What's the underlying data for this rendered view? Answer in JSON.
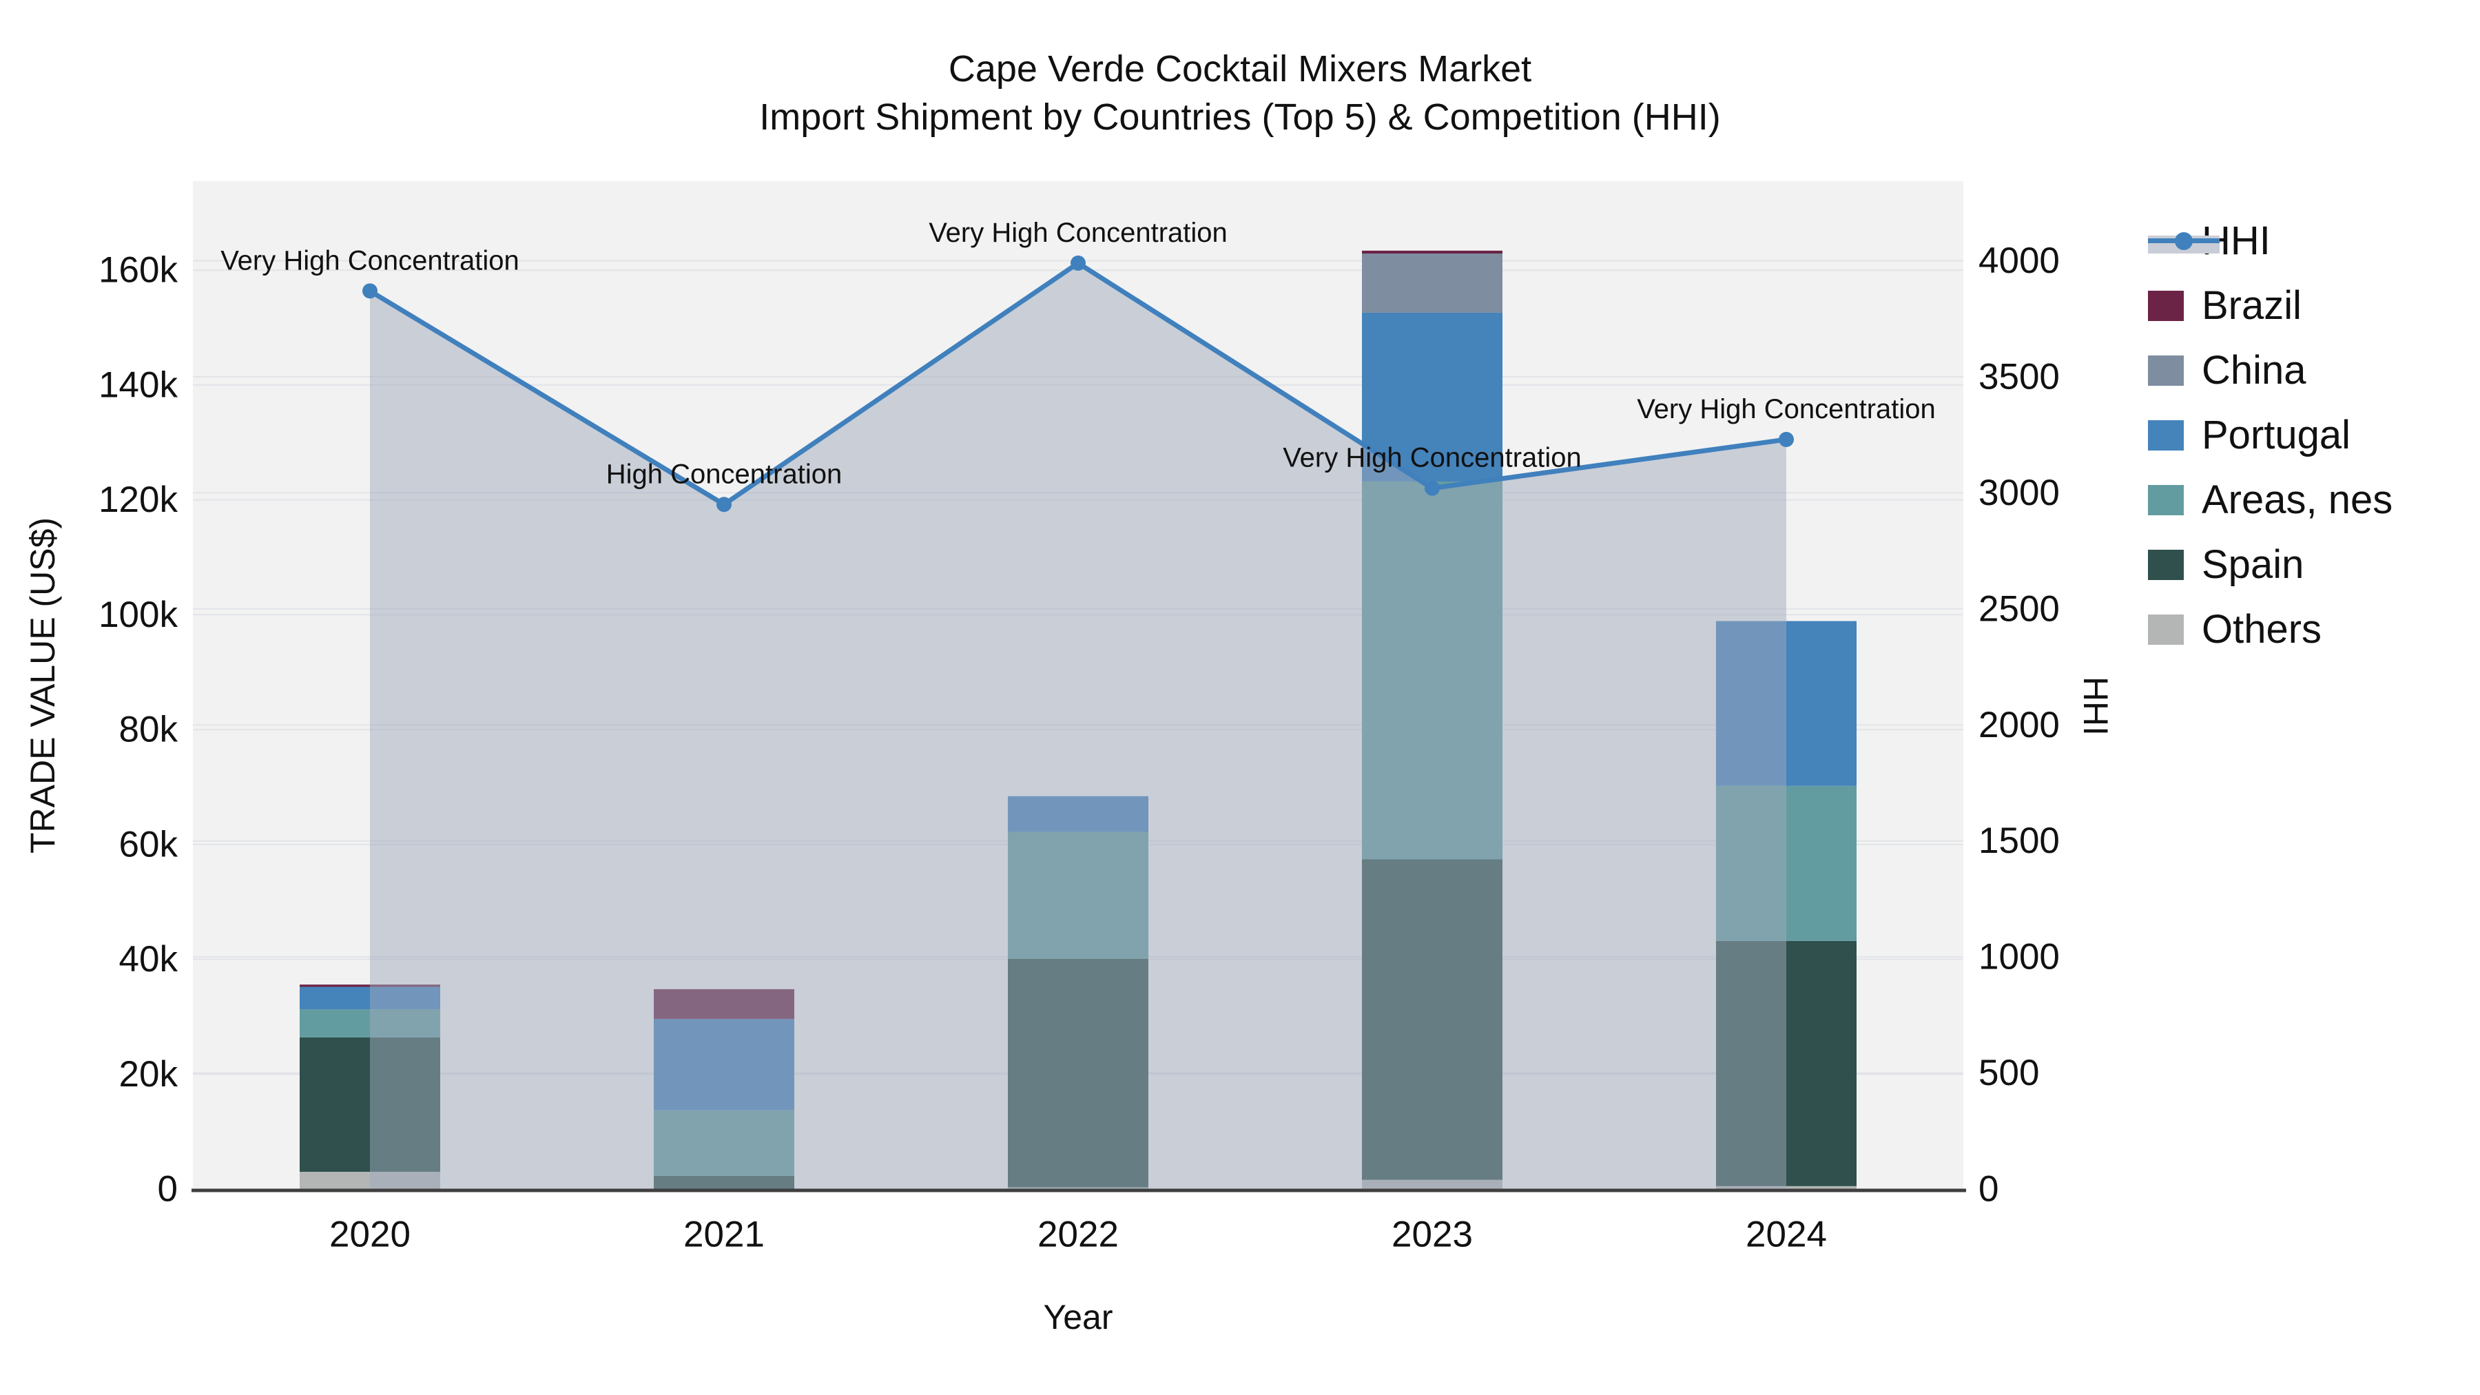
{
  "title": {
    "line1": "Cape Verde Cocktail Mixers Market",
    "line2": "Import Shipment by Countries (Top 5) & Competition (HHI)"
  },
  "axes": {
    "x": {
      "title": "Year",
      "tick_labels": [
        "2020",
        "2021",
        "2022",
        "2023",
        "2024"
      ]
    },
    "left": {
      "title": "TRADE VALUE (US$)",
      "tick_labels": [
        "0",
        "20k",
        "40k",
        "60k",
        "80k",
        "100k",
        "120k",
        "140k",
        "160k"
      ],
      "tick_values": [
        0,
        20000,
        40000,
        60000,
        80000,
        100000,
        120000,
        140000,
        160000
      ],
      "range": [
        0,
        175500
      ]
    },
    "right": {
      "title": "HHI",
      "tick_labels": [
        "0",
        "500",
        "1000",
        "1500",
        "2000",
        "2500",
        "3000",
        "3500",
        "4000"
      ],
      "tick_values": [
        0,
        500,
        1000,
        1500,
        2000,
        2500,
        3000,
        3500,
        4000
      ],
      "range": [
        0,
        4343
      ]
    }
  },
  "legend": {
    "items": [
      {
        "id": "hhi",
        "label": "HHI",
        "type": "line",
        "color": "#4080bd"
      },
      {
        "id": "brazil",
        "label": "Brazil",
        "type": "swatch",
        "color": "#6b2346"
      },
      {
        "id": "china",
        "label": "China",
        "type": "swatch",
        "color": "#7e8da0"
      },
      {
        "id": "portugal",
        "label": "Portugal",
        "type": "swatch",
        "color": "#4583bb"
      },
      {
        "id": "areas-nes",
        "label": "Areas, nes",
        "type": "swatch",
        "color": "#629ca0"
      },
      {
        "id": "spain",
        "label": "Spain",
        "type": "swatch",
        "color": "#2f504c"
      },
      {
        "id": "others",
        "label": "Others",
        "type": "swatch",
        "color": "#b4b6b6"
      }
    ]
  },
  "chart_data": {
    "type": "bar+line",
    "stacked": true,
    "categories": [
      "2020",
      "2021",
      "2022",
      "2023",
      "2024"
    ],
    "bar_value_unit": "US$",
    "series": [
      {
        "name": "Others",
        "color": "#b4b6b6",
        "values": [
          3000,
          0,
          300,
          1600,
          500
        ]
      },
      {
        "name": "Spain",
        "color": "#2f504c",
        "values": [
          23400,
          2300,
          39800,
          55800,
          42700
        ]
      },
      {
        "name": "Areas, nes",
        "color": "#629ca0",
        "values": [
          4900,
          11400,
          22100,
          65800,
          27000
        ]
      },
      {
        "name": "Portugal",
        "color": "#4583bb",
        "values": [
          3900,
          15900,
          6200,
          29400,
          28700
        ]
      },
      {
        "name": "China",
        "color": "#7e8da0",
        "values": [
          0,
          0,
          0,
          10300,
          0
        ]
      },
      {
        "name": "Brazil",
        "color": "#6b2346",
        "values": [
          400,
          5200,
          0,
          500,
          0
        ]
      }
    ],
    "bar_totals": [
      35600,
      34800,
      68400,
      163400,
      98900
    ],
    "line": {
      "name": "HHI",
      "axis": "right",
      "values": [
        3870,
        2950,
        3990,
        3020,
        3230
      ],
      "color": "#4080bd",
      "fill_color": "rgba(160,170,188,0.5)",
      "marker": "circle"
    },
    "annotations": [
      {
        "x": "2020",
        "text": "Very High Concentration"
      },
      {
        "x": "2021",
        "text": "High Concentration"
      },
      {
        "x": "2022",
        "text": "Very High Concentration"
      },
      {
        "x": "2023",
        "text": "Very High Concentration"
      },
      {
        "x": "2024",
        "text": "Very High Concentration"
      }
    ],
    "xlabel": "Year",
    "ylabel_left": "TRADE VALUE (US$)",
    "ylabel_right": "HHI",
    "grid": true,
    "legend_position": "right"
  },
  "colors": {
    "page_background": "#ffffff",
    "plot_background": "#f2f2f2",
    "grid": "#e2e4e8",
    "axis_line": "#3f3f3f",
    "text": "#111111"
  }
}
